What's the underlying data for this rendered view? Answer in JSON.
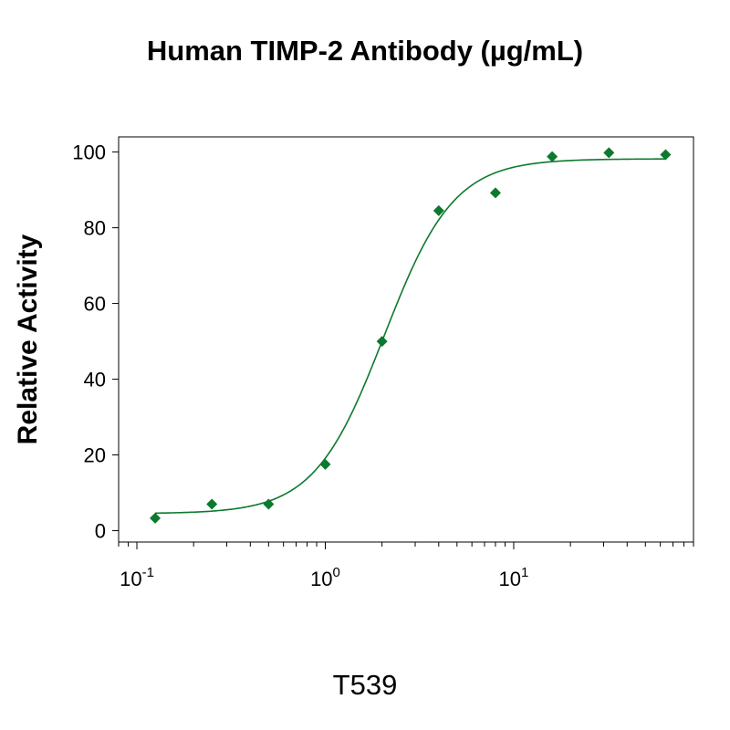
{
  "title": "Human TIMP-2 Antibody (µg/mL)",
  "footer_label": "T539",
  "chart_data": {
    "type": "scatter",
    "xscale": "log",
    "xlim": [
      0.08,
      90
    ],
    "ylim": [
      -3,
      104
    ],
    "ylabel": "Relative Activity",
    "xlabel": "",
    "yticks": [
      0,
      20,
      40,
      60,
      80,
      100
    ],
    "xticks_major": [
      {
        "value": 0.1,
        "base": "10",
        "exp": "-1"
      },
      {
        "value": 1,
        "base": "10",
        "exp": "0"
      },
      {
        "value": 10,
        "base": "10",
        "exp": "1"
      }
    ],
    "series": [
      {
        "x": [
          0.125,
          0.25,
          0.5,
          1,
          2,
          4,
          8,
          16,
          32,
          64
        ],
        "y": [
          3.3,
          7,
          7,
          17.5,
          50,
          84.5,
          89.2,
          98.8,
          99.8,
          99.3
        ]
      }
    ],
    "fit_curve": {
      "model": "4PL",
      "bottom": 4.5,
      "top": 98.2,
      "ec50": 2.05,
      "hill": 2.35
    },
    "marker_color": "#0c7a2e",
    "curve_color": "#0c7a2e",
    "grid": false,
    "legend": "none"
  }
}
